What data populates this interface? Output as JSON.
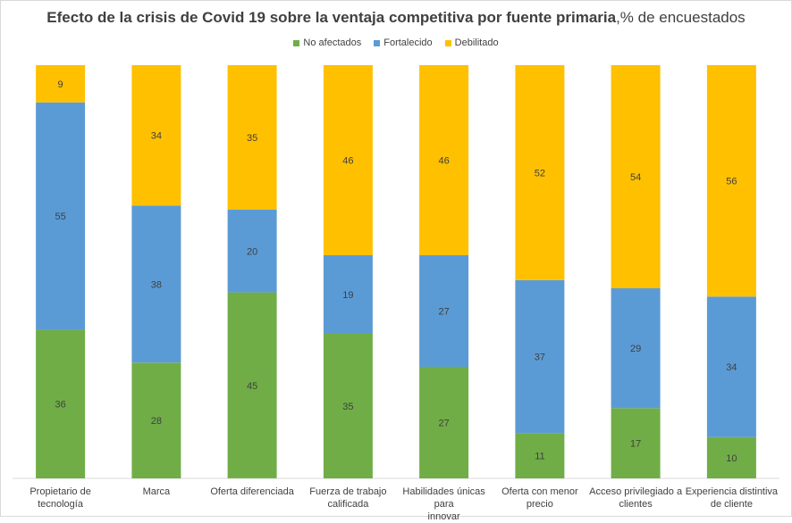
{
  "chart_data": {
    "type": "bar",
    "stacked": true,
    "title_bold": "Efecto de la crisis de Covid 19 sobre la ventaja competitiva por fuente primaria",
    "title_rest": ",% de encuestados",
    "categories": [
      [
        "Propietario de",
        "tecnología"
      ],
      [
        "Marca"
      ],
      [
        "Oferta diferenciada"
      ],
      [
        "Fuerza de trabajo",
        "calificada"
      ],
      [
        "Habilidades únicas para",
        "innovar"
      ],
      [
        "Oferta con menor",
        "precio"
      ],
      [
        "Acceso privilegiado a",
        "clientes"
      ],
      [
        "Experiencia distintiva",
        "de cliente"
      ]
    ],
    "series": [
      {
        "name": "No afectados",
        "color": "#70ad47",
        "values": [
          36,
          28,
          45,
          35,
          27,
          11,
          17,
          10
        ]
      },
      {
        "name": "Fortalecido",
        "color": "#5b9bd5",
        "values": [
          55,
          38,
          20,
          19,
          27,
          37,
          29,
          34
        ]
      },
      {
        "name": "Debilitado",
        "color": "#ffc000",
        "values": [
          9,
          34,
          35,
          46,
          46,
          52,
          54,
          56
        ]
      }
    ],
    "ylim": [
      0,
      100
    ],
    "legend_position": "top"
  }
}
